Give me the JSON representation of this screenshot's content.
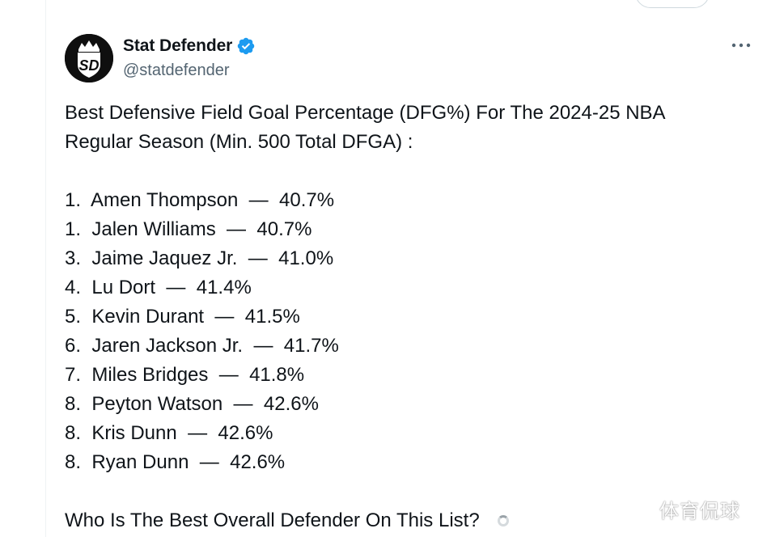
{
  "author": {
    "display_name": "Stat Defender",
    "handle": "@statdefender",
    "avatar_icon": "sd-crown-logo-icon",
    "verified_icon": "verified-badge-icon",
    "verified_color": "#1d9bf0"
  },
  "actions": {
    "more_icon": "more-dots-icon"
  },
  "tweet": {
    "intro": "Best Defensive Field Goal Percentage (DFG%) For The 2024-25 NBA Regular Season (Min. 500 Total DFGA) :",
    "rankings": [
      "1.  Amen Thompson  —  40.7%",
      "1.  Jalen Williams  —  40.7%",
      "3.  Jaime Jaquez Jr.  —  41.0%",
      "4.  Lu Dort  —  41.4%",
      "5.  Kevin Durant  —  41.5%",
      "6.  Jaren Jackson Jr.  —  41.7%",
      "7.  Miles Bridges  —  41.8%",
      "8.  Peyton Watson  —  42.6%",
      "8.  Kris Dunn  —  42.6%",
      "8.  Ryan Dunn  —  42.6%"
    ],
    "question": "Who Is The Best Overall Defender On This List?"
  },
  "watermark": {
    "text": "体育侃球"
  }
}
